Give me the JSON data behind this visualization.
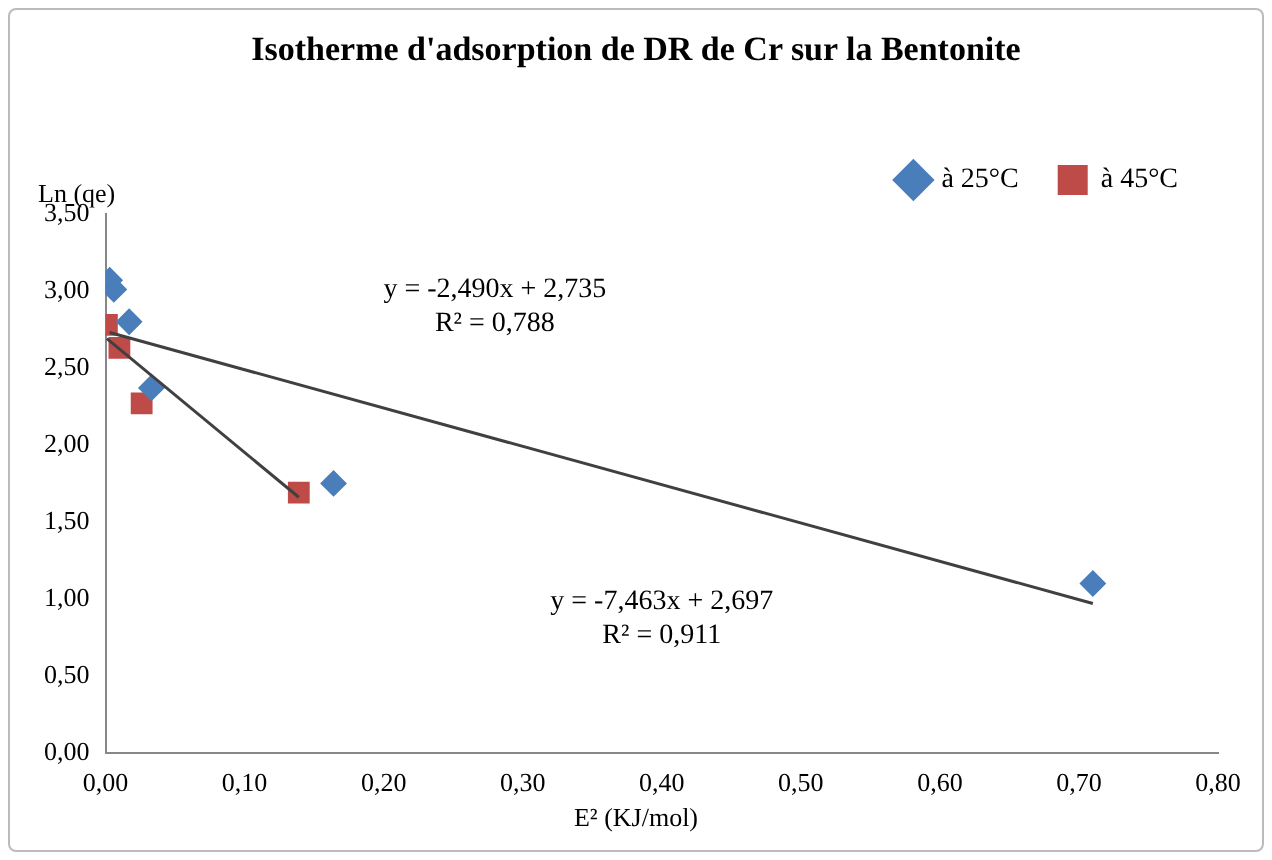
{
  "chart_data": {
    "type": "scatter",
    "title": "Isotherme d'adsorption de DR de Cr sur la Bentonite",
    "xlabel": "E² (KJ/mol)",
    "ylabel": "Ln (qe)",
    "series": [
      {
        "name": "à 25°C",
        "color": "#4a7ebb",
        "marker": "diamond",
        "x": [
          0.003,
          0.006,
          0.017,
          0.033,
          0.164,
          0.71
        ],
        "values": [
          3.07,
          3.01,
          2.8,
          2.37,
          1.75,
          1.1
        ]
      },
      {
        "name": "à 45°C",
        "color": "#be4b48",
        "marker": "square",
        "x": [
          0.001,
          0.01,
          0.026,
          0.139
        ],
        "values": [
          2.78,
          2.63,
          2.27,
          1.69
        ]
      },
      {
        "type": "line",
        "color": "#404040",
        "marker": "none",
        "x": [
          0.003,
          0.71
        ],
        "values": [
          2.73,
          0.97
        ]
      },
      {
        "type": "line",
        "color": "#404040",
        "marker": "none",
        "x": [
          0.001,
          0.139
        ],
        "values": [
          2.69,
          1.66
        ]
      }
    ],
    "xlim": [
      0,
      0.8
    ],
    "xticks": [
      {
        "value": 0,
        "label": "0,00"
      },
      {
        "value": 0.1,
        "label": "0,10"
      },
      {
        "value": 0.2,
        "label": "0,20"
      },
      {
        "value": 0.3,
        "label": "0,30"
      },
      {
        "value": 0.4,
        "label": "0,40"
      },
      {
        "value": 0.5,
        "label": "0,50"
      },
      {
        "value": 0.6,
        "label": "0,60"
      },
      {
        "value": 0.7,
        "label": "0,70"
      },
      {
        "value": 0.8,
        "label": "0,80"
      }
    ],
    "ylim": [
      0,
      3.5
    ],
    "yticks": [
      {
        "value": 0,
        "label": "0,00"
      },
      {
        "value": 0.5,
        "label": "0,50"
      },
      {
        "value": 1,
        "label": "1,00"
      },
      {
        "value": 1.5,
        "label": "1,50"
      },
      {
        "value": 2,
        "label": "2,00"
      },
      {
        "value": 2.5,
        "label": "2,50"
      },
      {
        "value": 3,
        "label": "3,00"
      },
      {
        "value": 3.5,
        "label": "3,50"
      }
    ],
    "annotations": [
      "y = -2,490x + 2,735\nR² = 0,788",
      "y = -7,463x + 2,697\nR² = 0,911"
    ],
    "legend": "top right",
    "grid": false
  }
}
